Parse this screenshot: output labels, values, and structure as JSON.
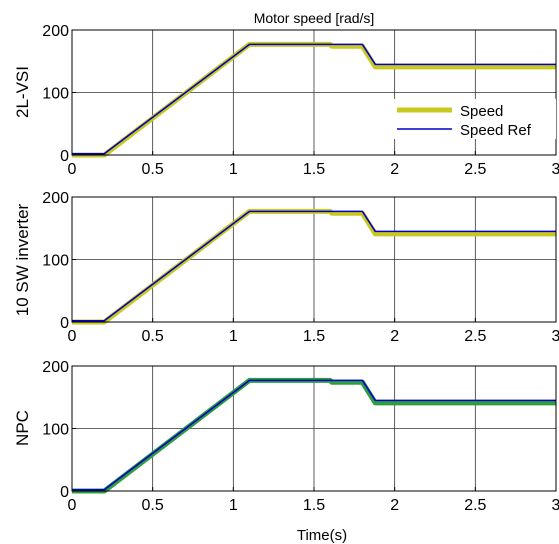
{
  "chart_data": [
    {
      "type": "line",
      "title": "Motor speed [rad/s]",
      "ylabel": "2L-VSI",
      "xlabel": "",
      "xlim": [
        0,
        3
      ],
      "ylim": [
        0,
        200
      ],
      "xticks": [
        "0",
        "0.5",
        "1",
        "1.5",
        "2",
        "2.5",
        "3"
      ],
      "yticks": [
        "0",
        "100",
        "200"
      ],
      "grid": true,
      "legend": "right",
      "series": [
        {
          "name": "Speed",
          "color": "#c8c81e",
          "x": [
            0,
            0.2,
            1.1,
            1.6,
            1.61,
            1.8,
            1.88,
            3
          ],
          "y": [
            0,
            0,
            177,
            177,
            174,
            174,
            141,
            141
          ]
        },
        {
          "name": "Speed Ref",
          "color": "#0000cc",
          "x": [
            0,
            0.2,
            1.1,
            1.8,
            1.88,
            3
          ],
          "y": [
            2,
            2,
            177,
            177,
            145,
            145
          ]
        }
      ]
    },
    {
      "type": "line",
      "title": "",
      "ylabel": "10 SW inverter",
      "xlabel": "",
      "xlim": [
        0,
        3
      ],
      "ylim": [
        0,
        200
      ],
      "xticks": [
        "0",
        "0.5",
        "1",
        "1.5",
        "2",
        "2.5",
        "3"
      ],
      "yticks": [
        "0",
        "100",
        "200"
      ],
      "grid": true,
      "series": [
        {
          "name": "Speed",
          "color": "#c8c81e",
          "x": [
            0,
            0.2,
            1.1,
            1.6,
            1.61,
            1.8,
            1.88,
            3
          ],
          "y": [
            0,
            0,
            177,
            177,
            174,
            174,
            141,
            141
          ]
        },
        {
          "name": "Speed Ref",
          "color": "#0000cc",
          "x": [
            0,
            0.2,
            1.1,
            1.8,
            1.88,
            3
          ],
          "y": [
            2,
            2,
            177,
            177,
            145,
            145
          ]
        }
      ]
    },
    {
      "type": "line",
      "title": "",
      "ylabel": "NPC",
      "xlabel": "Time(s)",
      "xlim": [
        0,
        3
      ],
      "ylim": [
        0,
        200
      ],
      "xticks": [
        "0",
        "0.5",
        "1",
        "1.5",
        "2",
        "2.5",
        "3"
      ],
      "yticks": [
        "0",
        "100",
        "200"
      ],
      "grid": true,
      "series": [
        {
          "name": "Speed",
          "color": "#2e9e3c",
          "x": [
            0,
            0.2,
            1.1,
            1.6,
            1.61,
            1.8,
            1.88,
            3
          ],
          "y": [
            0,
            0,
            177,
            177,
            174,
            174,
            141,
            141
          ]
        },
        {
          "name": "Speed Ref",
          "color": "#0000cc",
          "x": [
            0,
            0.2,
            1.1,
            1.8,
            1.88,
            3
          ],
          "y": [
            2,
            2,
            177,
            177,
            145,
            145
          ]
        }
      ]
    }
  ]
}
